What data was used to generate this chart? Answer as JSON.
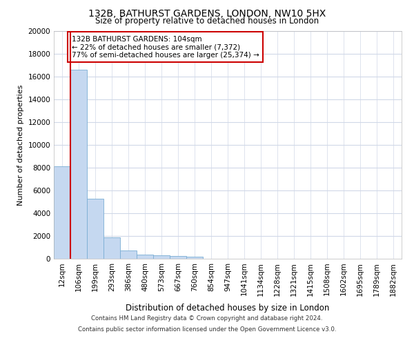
{
  "title": "132B, BATHURST GARDENS, LONDON, NW10 5HX",
  "subtitle": "Size of property relative to detached houses in London",
  "xlabel": "Distribution of detached houses by size in London",
  "ylabel": "Number of detached properties",
  "bar_color": "#c5d8f0",
  "bar_edge_color": "#7aadd4",
  "annotation_line_color": "#cc0000",
  "annotation_box_edge_color": "#cc0000",
  "annotation_line1": "132B BATHURST GARDENS: 104sqm",
  "annotation_line2": "← 22% of detached houses are smaller (7,372)",
  "annotation_line3": "77% of semi-detached houses are larger (25,374) →",
  "categories": [
    "12sqm",
    "106sqm",
    "199sqm",
    "293sqm",
    "386sqm",
    "480sqm",
    "573sqm",
    "667sqm",
    "760sqm",
    "854sqm",
    "947sqm",
    "1041sqm",
    "1134sqm",
    "1228sqm",
    "1321sqm",
    "1415sqm",
    "1508sqm",
    "1602sqm",
    "1695sqm",
    "1789sqm",
    "1882sqm"
  ],
  "bar_heights": [
    8100,
    16600,
    5300,
    1850,
    700,
    380,
    290,
    220,
    180,
    0,
    0,
    0,
    0,
    0,
    0,
    0,
    0,
    0,
    0,
    0,
    0
  ],
  "ylim": [
    0,
    20000
  ],
  "yticks": [
    0,
    2000,
    4000,
    6000,
    8000,
    10000,
    12000,
    14000,
    16000,
    18000,
    20000
  ],
  "footer_line1": "Contains HM Land Registry data © Crown copyright and database right 2024.",
  "footer_line2": "Contains public sector information licensed under the Open Government Licence v3.0.",
  "plot_bg_color": "#ffffff",
  "grid_color": "#d0d8e8"
}
